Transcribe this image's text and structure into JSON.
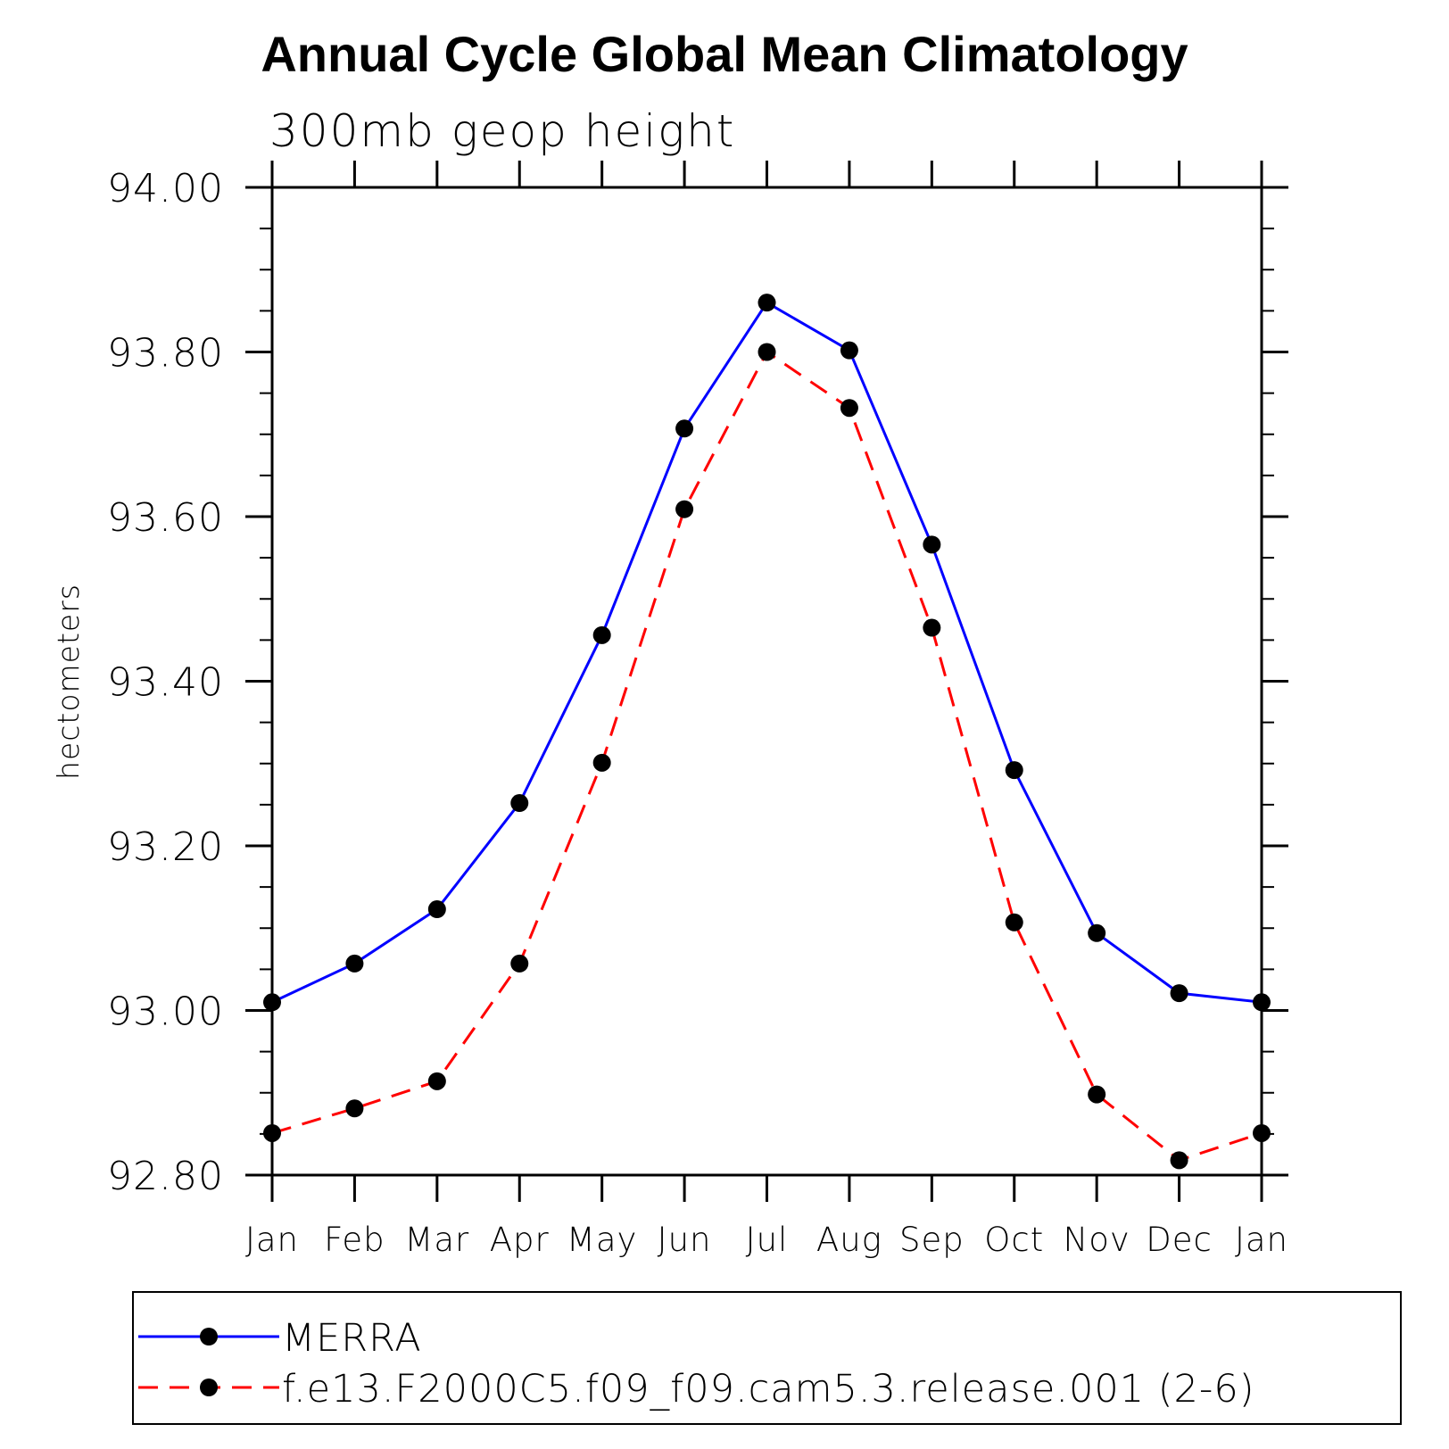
{
  "chart_data": {
    "type": "line",
    "title": "Annual Cycle Global Mean Climatology",
    "subtitle": "300mb geop height",
    "xlabel": "",
    "ylabel": "hectometers",
    "categories": [
      "Jan",
      "Feb",
      "Mar",
      "Apr",
      "May",
      "Jun",
      "Jul",
      "Aug",
      "Sep",
      "Oct",
      "Nov",
      "Dec",
      "Jan"
    ],
    "ylim": [
      92.8,
      94.0
    ],
    "yticks": [
      "92.80",
      "93.00",
      "93.20",
      "93.40",
      "93.60",
      "93.80",
      "94.00"
    ],
    "ytick_values": [
      92.8,
      93.0,
      93.2,
      93.4,
      93.6,
      93.8,
      94.0
    ],
    "grid": false,
    "legend_position": "bottom",
    "series": [
      {
        "name": "MERRA",
        "color": "#0000ff",
        "dash": "solid",
        "values": [
          93.01,
          93.057,
          93.123,
          93.252,
          93.456,
          93.707,
          93.86,
          93.802,
          93.566,
          93.292,
          93.094,
          93.021,
          93.01
        ]
      },
      {
        "name": "f.e13.F2000C5.f09_f09.cam5.3.release.001 (2-6)",
        "color": "#ff0000",
        "dash": "dashed",
        "values": [
          92.851,
          92.881,
          92.914,
          93.057,
          93.301,
          93.609,
          93.8,
          93.732,
          93.465,
          93.107,
          92.898,
          92.818,
          92.851
        ]
      }
    ]
  }
}
